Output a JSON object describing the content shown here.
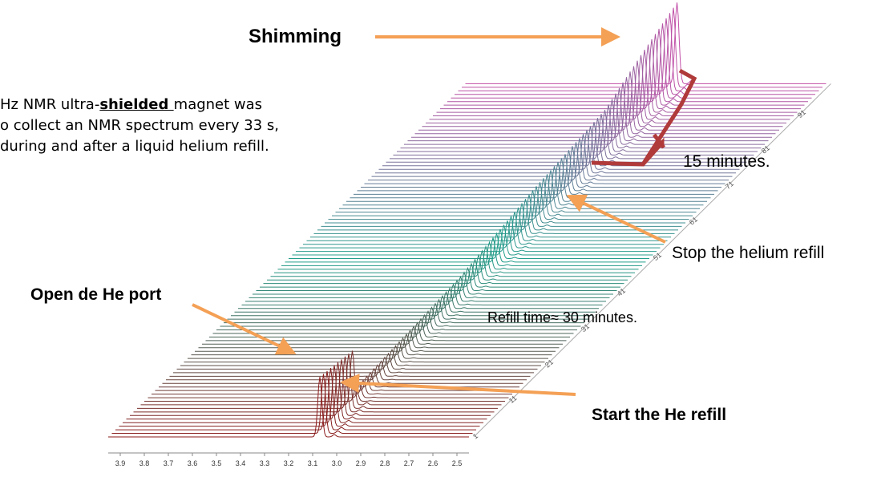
{
  "chart_data": {
    "type": "waterfall",
    "title": "",
    "xlabel": "",
    "ylabel": "",
    "x_ticks": [
      3.9,
      3.8,
      3.7,
      3.6,
      3.5,
      3.4,
      3.3,
      3.2,
      3.1,
      3.0,
      2.9,
      2.8,
      2.7,
      2.6,
      2.5
    ],
    "x_tick_labels": [
      "3.9",
      "3.8",
      "3.7",
      "3.6",
      "3.5",
      "3.4",
      "3.3",
      "3.2",
      "3.1",
      "3.0",
      "2.9",
      "2.8",
      "2.7",
      "2.6",
      "2.5"
    ],
    "xlim": [
      3.95,
      2.45
    ],
    "spectrum_index_range": [
      1,
      100
    ],
    "spectrum_ticks": [
      1,
      11,
      21,
      31,
      41,
      51,
      61,
      71,
      81,
      91
    ],
    "spectrum_tick_labels": [
      "1",
      "11",
      "21",
      "31",
      "41",
      "51",
      "61",
      "71",
      "81",
      "91"
    ],
    "peak_position": 3.07,
    "relative_peak_heights": [
      {
        "spectrum": 1,
        "height": 1.0
      },
      {
        "spectrum": 10,
        "height": 0.9
      },
      {
        "spectrum": 11,
        "height": 0.22
      },
      {
        "spectrum": 40,
        "height": 0.35
      },
      {
        "spectrum": 60,
        "height": 0.6
      },
      {
        "spectrum": 80,
        "height": 0.75
      },
      {
        "spectrum": 91,
        "height": 1.1
      },
      {
        "spectrum": 100,
        "height": 1.35
      }
    ],
    "colors": {
      "start": "#8b1a1a",
      "mid": "#1f9e8a",
      "end": "#c24fa8",
      "bracket": "#b03a3a",
      "arrow": "#f4a055"
    }
  },
  "annotations": {
    "shimming": "Shimming",
    "note_line1": "Hz NMR ultra-",
    "note_bold": "shielded ",
    "note_line1_end": "magnet was",
    "note_line2": "o collect an NMR spectrum every 33 s,",
    "note_line3": "during and after a liquid helium refill.",
    "fifteen": "15 minutes.",
    "stop": "Stop the helium refill",
    "open": "Open de He port",
    "refill_time": "Refill time≈ 30 minutes.",
    "start": "Start the He refill"
  }
}
